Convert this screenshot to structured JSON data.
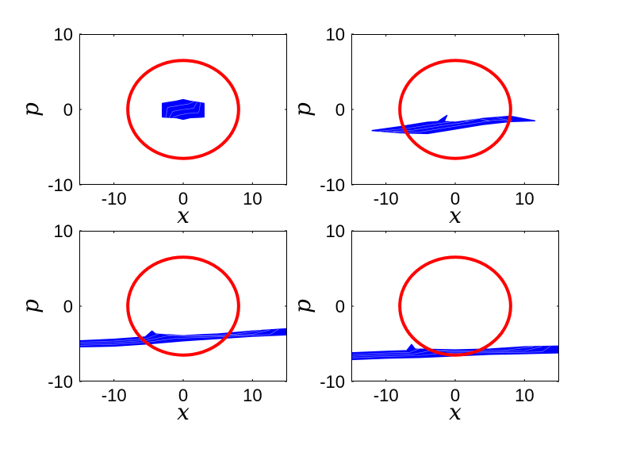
{
  "chart_data": [
    {
      "type": "line",
      "panel": "top-left",
      "xlabel": "x",
      "ylabel": "p",
      "xlim": [
        -15,
        15
      ],
      "ylim": [
        -10,
        10
      ],
      "xticks": [
        -10,
        0,
        10
      ],
      "yticks": [
        -10,
        0,
        10
      ],
      "xtick_labels": [
        "-10",
        "0",
        "10"
      ],
      "ytick_labels": [
        "-10",
        "0",
        "10"
      ],
      "series": [
        {
          "kind": "ellipse",
          "color": "#ff0000",
          "cx": 0,
          "cy": 0,
          "rx": 8,
          "ry": 6.5
        },
        {
          "kind": "band",
          "color": "#0000ff",
          "polygon": [
            [
              -3,
              -1
            ],
            [
              -3,
              0.8
            ],
            [
              -1,
              1.1
            ],
            [
              0,
              1.3
            ],
            [
              1,
              1.1
            ],
            [
              3,
              0.8
            ],
            [
              3,
              -1
            ],
            [
              1,
              -1.1
            ],
            [
              0,
              -1.3
            ],
            [
              -1,
              -1.1
            ]
          ]
        }
      ]
    },
    {
      "type": "line",
      "panel": "top-right",
      "xlabel": "x",
      "ylabel": "p",
      "xlim": [
        -15,
        15
      ],
      "ylim": [
        -10,
        10
      ],
      "xticks": [
        -10,
        0,
        10
      ],
      "yticks": [
        -10,
        0,
        10
      ],
      "xtick_labels": [
        "-10",
        "0",
        "10"
      ],
      "ytick_labels": [
        "-10",
        "0",
        "10"
      ],
      "series": [
        {
          "kind": "ellipse",
          "color": "#ff0000",
          "cx": 0,
          "cy": 0,
          "rx": 8,
          "ry": 6.5
        },
        {
          "kind": "band",
          "color": "#0000ff",
          "polygon": [
            [
              -12,
              -2.8
            ],
            [
              -8,
              -2.3
            ],
            [
              -4,
              -1.7
            ],
            [
              -2.5,
              -1.6
            ],
            [
              -1.2,
              -0.8
            ],
            [
              -1.6,
              -1.6
            ],
            [
              0,
              -1.7
            ],
            [
              4,
              -1.2
            ],
            [
              8,
              -0.9
            ],
            [
              11.5,
              -1.5
            ],
            [
              8,
              -1.6
            ],
            [
              4,
              -2
            ],
            [
              0,
              -2.6
            ],
            [
              -4,
              -3.2
            ],
            [
              -8,
              -3.1
            ]
          ]
        }
      ]
    },
    {
      "type": "line",
      "panel": "bottom-left",
      "xlabel": "x",
      "ylabel": "p",
      "xlim": [
        -15,
        15
      ],
      "ylim": [
        -10,
        10
      ],
      "xticks": [
        -10,
        0,
        10
      ],
      "yticks": [
        -10,
        0,
        10
      ],
      "xtick_labels": [
        "-10",
        "0",
        "10"
      ],
      "ytick_labels": [
        "-10",
        "0",
        "10"
      ],
      "series": [
        {
          "kind": "ellipse",
          "color": "#ff0000",
          "cx": 0,
          "cy": 0,
          "rx": 8,
          "ry": 6.5
        },
        {
          "kind": "band",
          "color": "#0000ff",
          "polygon": [
            [
              -15,
              -4.6
            ],
            [
              -10,
              -4.4
            ],
            [
              -5.5,
              -4.1
            ],
            [
              -4.5,
              -3.3
            ],
            [
              -4,
              -3.7
            ],
            [
              0,
              -3.9
            ],
            [
              5,
              -3.7
            ],
            [
              10,
              -3.3
            ],
            [
              15,
              -3
            ],
            [
              15,
              -3.8
            ],
            [
              10,
              -4
            ],
            [
              5,
              -4.3
            ],
            [
              0,
              -4.6
            ],
            [
              -5,
              -5
            ],
            [
              -10,
              -5.3
            ],
            [
              -15,
              -5.4
            ]
          ]
        }
      ]
    },
    {
      "type": "line",
      "panel": "bottom-right",
      "xlabel": "x",
      "ylabel": "p",
      "xlim": [
        -15,
        15
      ],
      "ylim": [
        -10,
        10
      ],
      "xticks": [
        -10,
        0,
        10
      ],
      "yticks": [
        -10,
        0,
        10
      ],
      "xtick_labels": [
        "-10",
        "0",
        "10"
      ],
      "ytick_labels": [
        "-10",
        "0",
        "10"
      ],
      "series": [
        {
          "kind": "ellipse",
          "color": "#ff0000",
          "cx": 0,
          "cy": 0,
          "rx": 8,
          "ry": 6.5
        },
        {
          "kind": "band",
          "color": "#0000ff",
          "polygon": [
            [
              -15,
              -6.2
            ],
            [
              -10,
              -6
            ],
            [
              -7,
              -5.9
            ],
            [
              -6.3,
              -5.1
            ],
            [
              -5.8,
              -5.7
            ],
            [
              0,
              -5.8
            ],
            [
              5,
              -5.7
            ],
            [
              10,
              -5.4
            ],
            [
              15,
              -5.3
            ],
            [
              15,
              -6.2
            ],
            [
              10,
              -6.3
            ],
            [
              5,
              -6.4
            ],
            [
              0,
              -6.6
            ],
            [
              -5,
              -6.8
            ],
            [
              -10,
              -6.9
            ],
            [
              -15,
              -7.1
            ]
          ]
        }
      ]
    }
  ]
}
